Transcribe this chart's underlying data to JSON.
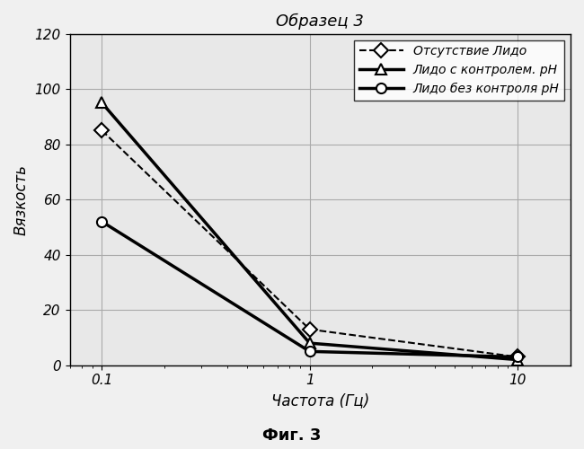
{
  "title": "Образец 3",
  "xlabel": "Частота (Гц)",
  "ylabel": "Вязкость",
  "fig_label": "Фиг. 3",
  "x": [
    0.1,
    1,
    10
  ],
  "series": [
    {
      "label": "Отсутствие Лидо",
      "y": [
        85,
        13,
        3
      ],
      "color": "#000000",
      "linestyle": "--",
      "marker": "D",
      "markersize": 8,
      "linewidth": 1.5
    },
    {
      "label": "Лидо с контролем. pH",
      "y": [
        95,
        8,
        2
      ],
      "color": "#000000",
      "linestyle": "-",
      "marker": "^",
      "markersize": 9,
      "linewidth": 2.5
    },
    {
      "label": "Лидо без контроля pH",
      "y": [
        52,
        5,
        3
      ],
      "color": "#000000",
      "linestyle": "-",
      "marker": "o",
      "markersize": 8,
      "linewidth": 2.5
    }
  ],
  "ylim": [
    0,
    120
  ],
  "yticks": [
    0,
    20,
    40,
    60,
    80,
    100,
    120
  ],
  "xticks": [
    0.1,
    1,
    10
  ],
  "xticklabels": [
    "0.1",
    "1",
    "10"
  ],
  "plot_bgcolor": "#e8e8e8",
  "fig_bgcolor": "#f0f0f0",
  "legend_loc": "upper right",
  "title_fontstyle": "italic",
  "title_fontsize": 13,
  "tick_fontsize": 11,
  "label_fontsize": 12,
  "legend_fontsize": 10
}
